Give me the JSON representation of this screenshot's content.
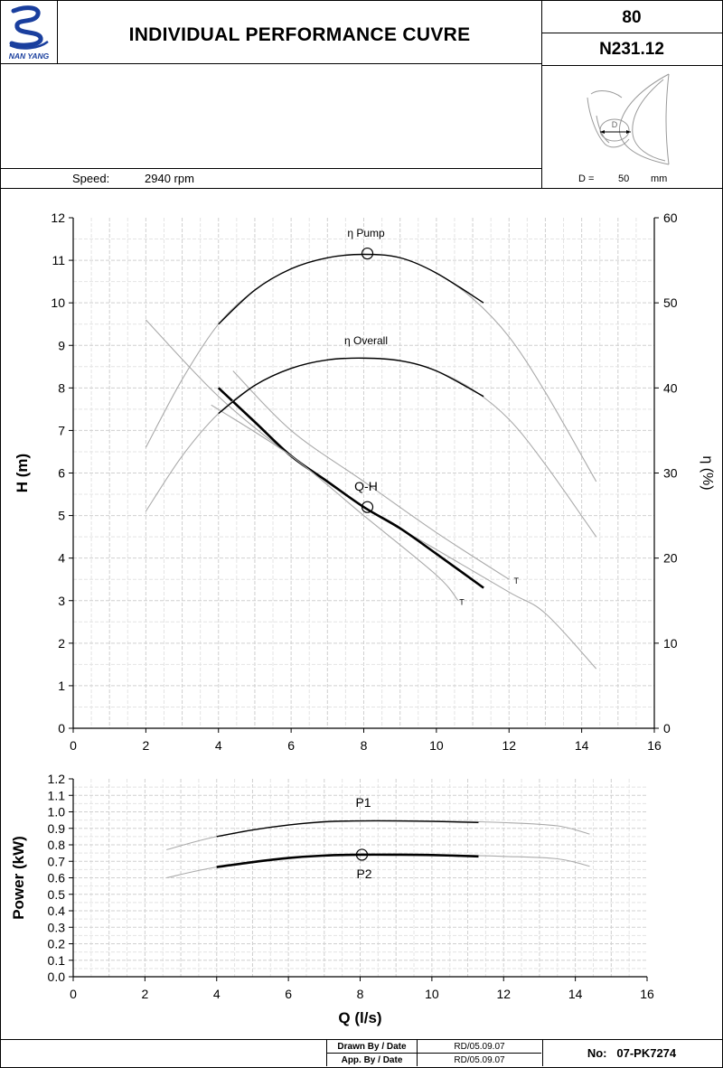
{
  "header": {
    "logo_text": "NAN YANG",
    "title": "INDIVIDUAL PERFORMANCE  CUVRE",
    "model_line1": "80",
    "model_line2": "N231.12"
  },
  "info": {
    "speed_label": "Speed:",
    "speed_value": "2940  rpm",
    "diameter_label": "D =",
    "diameter_value": "50",
    "diameter_unit": "mm",
    "impeller_label": "D"
  },
  "footer": {
    "drawn_label": "Drawn By / Date",
    "drawn_value": "RD/05.09.07",
    "approved_label": "App. By / Date",
    "approved_value": "RD/05.09.07",
    "no_label": "No:",
    "no_value": "07-PK7274"
  },
  "chart_data": [
    {
      "type": "line",
      "title": "",
      "xlabel": "",
      "ylabel": "H (m)",
      "y2label": "η (%)",
      "xlim": [
        0,
        16
      ],
      "ylim": [
        0,
        12
      ],
      "y2lim": [
        0,
        60
      ],
      "xticks": [
        "0",
        "2",
        "4",
        "6",
        "8",
        "10",
        "12",
        "14",
        "16"
      ],
      "yticks": [
        "0",
        "1",
        "2",
        "3",
        "4",
        "5",
        "6",
        "7",
        "8",
        "9",
        "10",
        "11",
        "12"
      ],
      "y2ticks": [
        "0",
        "10",
        "20",
        "30",
        "40",
        "50",
        "60"
      ],
      "grid": true,
      "series": [
        {
          "name": "Q-H",
          "axis": "left",
          "role": "full",
          "x": [
            2,
            4,
            6,
            8,
            10,
            12,
            13,
            14.4
          ],
          "y": [
            9.6,
            7.8,
            6.4,
            5.2,
            4.2,
            3.2,
            2.7,
            1.4
          ]
        },
        {
          "name": "Q-H",
          "axis": "left",
          "role": "main",
          "x": [
            4,
            5,
            6,
            7,
            8,
            9,
            10,
            11.3
          ],
          "y": [
            8.0,
            7.2,
            6.4,
            5.8,
            5.2,
            4.7,
            4.1,
            3.3
          ]
        },
        {
          "name": "",
          "axis": "left",
          "role": "tolerance",
          "x": [
            4.4,
            6,
            8,
            10,
            12
          ],
          "y": [
            8.4,
            7.0,
            5.8,
            4.6,
            3.5
          ]
        },
        {
          "name": "",
          "axis": "left",
          "role": "tolerance",
          "x": [
            3.8,
            6,
            8,
            10,
            10.6
          ],
          "y": [
            7.6,
            6.4,
            5.0,
            3.6,
            3.0
          ]
        },
        {
          "name": "η Pump",
          "axis": "right",
          "role": "full",
          "x": [
            2,
            3,
            4,
            5,
            6,
            7,
            8,
            9,
            10,
            11,
            12,
            13,
            14.4
          ],
          "y": [
            33,
            41,
            47.5,
            51.5,
            54,
            55.3,
            55.7,
            55.3,
            53.5,
            50.5,
            46,
            39.5,
            29
          ]
        },
        {
          "name": "η Pump",
          "axis": "right",
          "role": "main",
          "x": [
            4,
            5,
            6,
            7,
            8,
            9,
            10,
            11.3
          ],
          "y": [
            47.5,
            51.5,
            54,
            55.3,
            55.7,
            55.3,
            53.5,
            50
          ]
        },
        {
          "name": "η Overall",
          "axis": "right",
          "role": "full",
          "x": [
            2,
            3,
            4,
            5,
            6,
            7,
            8,
            9,
            10,
            11,
            12,
            13,
            14.4
          ],
          "y": [
            25.5,
            32,
            37,
            40.3,
            42.3,
            43.3,
            43.5,
            43.2,
            42,
            39.8,
            36.3,
            31,
            22.5
          ]
        },
        {
          "name": "η Overall",
          "axis": "right",
          "role": "main",
          "x": [
            4,
            5,
            6,
            7,
            8,
            9,
            10,
            11.3
          ],
          "y": [
            37,
            40.3,
            42.3,
            43.3,
            43.5,
            43.2,
            42,
            39
          ]
        }
      ],
      "markers": [
        {
          "label": "Q-H",
          "x": 8.1,
          "y": 5.2,
          "axis": "left"
        },
        {
          "label": "η Pump",
          "x": 8.1,
          "y": 55.8,
          "axis": "right"
        }
      ],
      "annotations": [
        {
          "text": "T",
          "x": 12.2,
          "y": 3.4,
          "axis": "left"
        },
        {
          "text": "T",
          "x": 10.7,
          "y": 2.9,
          "axis": "left"
        }
      ]
    },
    {
      "type": "line",
      "title": "",
      "xlabel": "Q (l/s)",
      "ylabel": "Power (kW)",
      "xlim": [
        0,
        16
      ],
      "ylim": [
        0,
        1.2
      ],
      "xticks": [
        "0",
        "2",
        "4",
        "6",
        "8",
        "10",
        "12",
        "14",
        "16"
      ],
      "yticks": [
        "0.0",
        "0.1",
        "0.2",
        "0.3",
        "0.4",
        "0.5",
        "0.6",
        "0.7",
        "0.8",
        "0.9",
        "1.0",
        "1.1",
        "1.2"
      ],
      "grid": true,
      "series": [
        {
          "name": "P1",
          "role": "full",
          "x": [
            2.6,
            4,
            6,
            8,
            10,
            12,
            13.5,
            14.4
          ],
          "y": [
            0.77,
            0.85,
            0.92,
            0.945,
            0.945,
            0.935,
            0.915,
            0.865
          ]
        },
        {
          "name": "P1",
          "role": "main",
          "x": [
            4,
            5,
            6,
            7,
            8,
            9,
            10,
            11.3
          ],
          "y": [
            0.85,
            0.89,
            0.92,
            0.94,
            0.945,
            0.945,
            0.942,
            0.935
          ]
        },
        {
          "name": "P2",
          "role": "full",
          "x": [
            2.6,
            4,
            6,
            8,
            10,
            12,
            13.5,
            14.4
          ],
          "y": [
            0.6,
            0.665,
            0.72,
            0.74,
            0.74,
            0.73,
            0.715,
            0.67
          ]
        },
        {
          "name": "P2",
          "role": "main",
          "x": [
            4,
            5,
            6,
            7,
            8,
            9,
            10,
            11.3
          ],
          "y": [
            0.665,
            0.695,
            0.72,
            0.735,
            0.74,
            0.74,
            0.738,
            0.73
          ]
        }
      ],
      "markers": [
        {
          "label": "P2",
          "x": 8.05,
          "y": 0.74
        }
      ]
    }
  ]
}
